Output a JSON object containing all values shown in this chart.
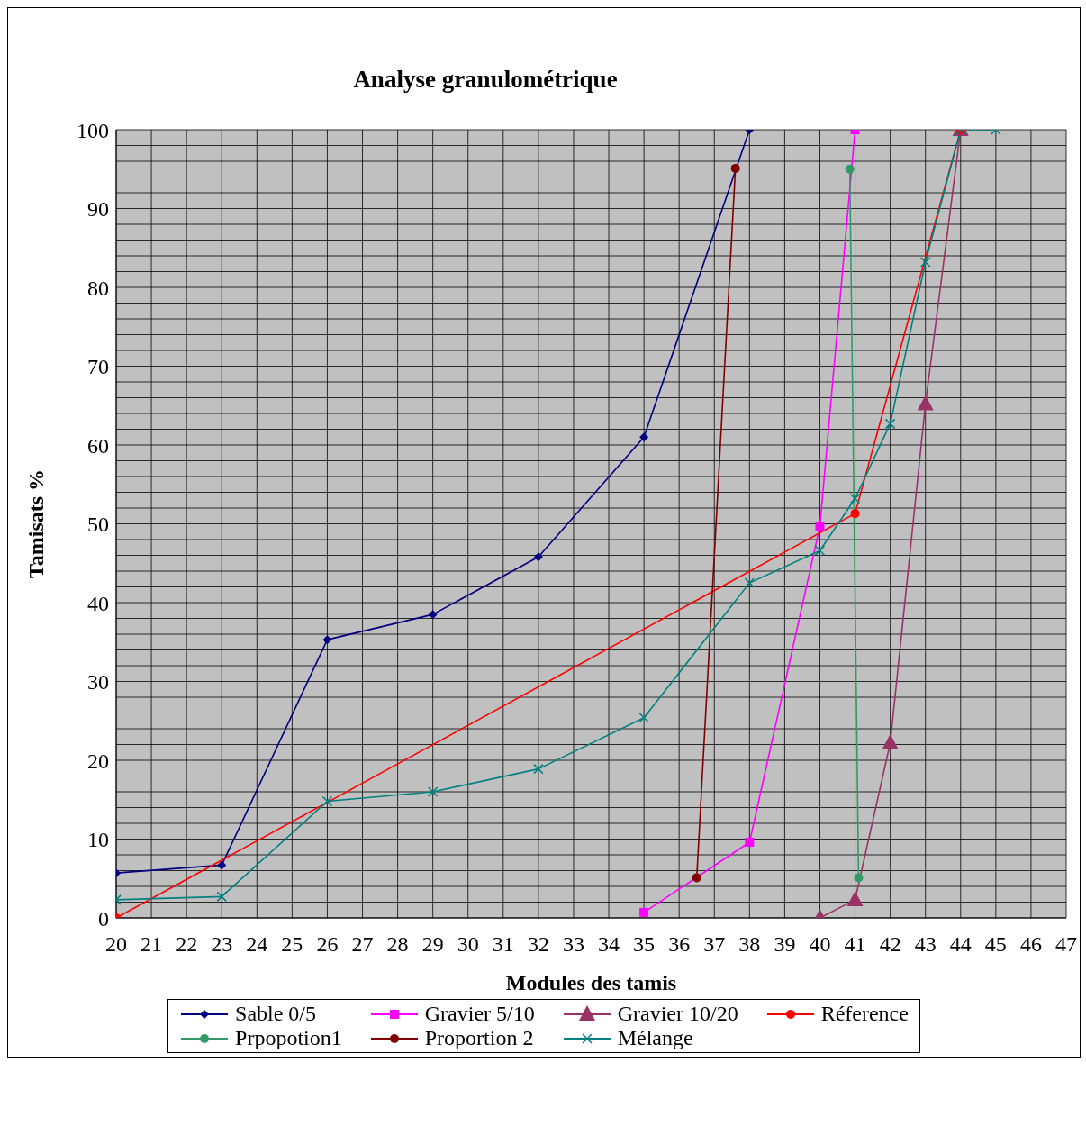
{
  "chart_data": {
    "type": "line",
    "title": "Analyse granulométrique",
    "xlabel": "Modules des tamis",
    "ylabel": "Tamisats %",
    "xlim": [
      20,
      47
    ],
    "xticks": [
      20,
      21,
      22,
      23,
      24,
      25,
      26,
      27,
      28,
      29,
      30,
      31,
      32,
      33,
      34,
      35,
      36,
      37,
      38,
      39,
      40,
      41,
      42,
      43,
      44,
      45,
      46,
      47
    ],
    "ylim": [
      0,
      100
    ],
    "yticks": [
      0,
      {
        "value": 2,
        "label": null
      },
      {
        "value": 4,
        "label": null
      },
      {
        "value": 6,
        "label": null
      },
      {
        "value": 8,
        "label": null
      },
      10,
      {
        "value": 12,
        "label": null
      },
      {
        "value": 14,
        "label": null
      },
      {
        "value": 16,
        "label": null
      },
      {
        "value": 18,
        "label": null
      },
      20,
      {
        "value": 22,
        "label": null
      },
      {
        "value": 24,
        "label": null
      },
      {
        "value": 26,
        "label": null
      },
      {
        "value": 28,
        "label": null
      },
      30,
      {
        "value": 32,
        "label": null
      },
      {
        "value": 34,
        "label": null
      },
      {
        "value": 36,
        "label": null
      },
      {
        "value": 38,
        "label": null
      },
      40,
      {
        "value": 42,
        "label": null
      },
      {
        "value": 44,
        "label": null
      },
      {
        "value": 46,
        "label": null
      },
      {
        "value": 48,
        "label": null
      },
      50,
      {
        "value": 52,
        "label": null
      },
      {
        "value": 54,
        "label": null
      },
      {
        "value": 56,
        "label": null
      },
      {
        "value": 58,
        "label": null
      },
      60,
      {
        "value": 62,
        "label": null
      },
      {
        "value": 64,
        "label": null
      },
      {
        "value": 66,
        "label": null
      },
      {
        "value": 68,
        "label": null
      },
      70,
      {
        "value": 72,
        "label": null
      },
      {
        "value": 74,
        "label": null
      },
      {
        "value": 76,
        "label": null
      },
      {
        "value": 78,
        "label": null
      },
      80,
      {
        "value": 82,
        "label": null
      },
      {
        "value": 84,
        "label": null
      },
      {
        "value": 86,
        "label": null
      },
      {
        "value": 88,
        "label": null
      },
      90,
      {
        "value": 92,
        "label": null
      },
      {
        "value": 94,
        "label": null
      },
      {
        "value": 96,
        "label": null
      },
      {
        "value": 98,
        "label": null
      },
      100
    ],
    "grid": true,
    "legend": "bottom",
    "line_style": "solid",
    "series": [
      {
        "name": "Sable 0/5",
        "color": "#000080",
        "marker": "diamond",
        "x": [
          20,
          23,
          26,
          29,
          32,
          35,
          38
        ],
        "values": [
          5.7,
          6.7,
          35.3,
          38.5,
          45.8,
          61,
          100
        ]
      },
      {
        "name": "Gravier 5/10",
        "color": "#ff00ff",
        "marker": "square",
        "x": [
          35,
          38,
          40,
          41
        ],
        "values": [
          0.7,
          9.6,
          49.7,
          100
        ]
      },
      {
        "name": "Gravier 10/20",
        "color": "#993366",
        "marker": "triangle",
        "x": [
          40,
          41,
          42,
          43,
          44
        ],
        "values": [
          0,
          2.3,
          22.2,
          65.2,
          100
        ]
      },
      {
        "name": "Réference",
        "color": "#ff0000",
        "marker": "circle",
        "x": [
          20,
          41,
          44
        ],
        "values": [
          0,
          51.3,
          100
        ]
      },
      {
        "name": "Prpopotion1",
        "color": "#339966",
        "marker": "circle",
        "x": [
          40.85,
          41.1
        ],
        "values": [
          95,
          5.1
        ]
      },
      {
        "name": "Proportion 2",
        "color": "#800000",
        "marker": "circle",
        "x": [
          36.5,
          37.6
        ],
        "values": [
          5.1,
          95.1
        ]
      },
      {
        "name": "Mélange",
        "color": "#008080",
        "marker": "cross",
        "x": [
          20,
          23,
          26,
          29,
          32,
          35,
          38,
          40,
          41,
          42,
          43,
          44,
          45
        ],
        "values": [
          2.3,
          2.7,
          14.8,
          16,
          18.9,
          25.4,
          42.5,
          46.6,
          53.2,
          62.7,
          83.2,
          100,
          100
        ]
      }
    ]
  }
}
